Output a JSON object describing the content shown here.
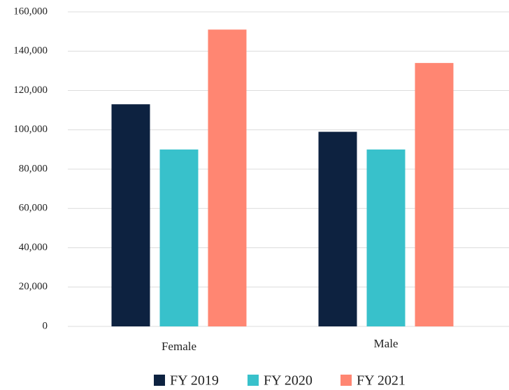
{
  "chart_data": {
    "type": "bar",
    "categories": [
      "Female",
      "Male"
    ],
    "series": [
      {
        "name": "FY 2019",
        "color": "#0d2240",
        "values": [
          113000,
          99000
        ]
      },
      {
        "name": "FY 2020",
        "color": "#38c1cb",
        "values": [
          90000,
          90000
        ]
      },
      {
        "name": "FY 2021",
        "color": "#ff8672",
        "values": [
          151000,
          134000
        ]
      }
    ],
    "ylim": [
      0,
      160000
    ],
    "yticks": [
      0,
      {
        "value": 20000,
        "label": "20,000"
      },
      {
        "value": 40000,
        "label": "40,000"
      },
      {
        "value": 60000,
        "label": "60,000"
      },
      {
        "value": 80000,
        "label": "80,000"
      },
      {
        "value": 100000,
        "label": "100,000"
      },
      {
        "value": 120000,
        "label": "120,000"
      },
      {
        "value": 140000,
        "label": "140,000"
      },
      {
        "value": 160000,
        "label": "160,000"
      }
    ],
    "grid": true,
    "legend": "bottom"
  }
}
